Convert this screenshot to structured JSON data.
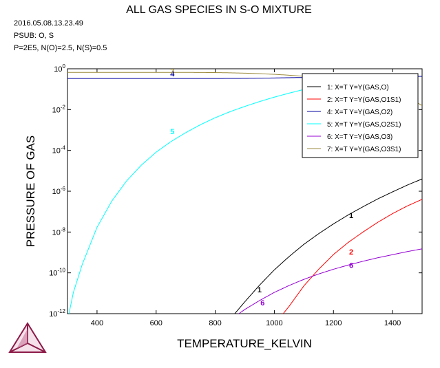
{
  "chart_data": {
    "type": "line",
    "title": "ALL GAS SPECIES IN S-O MIXTURE",
    "header_lines": [
      "2016.05.08.13.23.49",
      "PSUB: O, S",
      "P=2E5, N(O)=2.5, N(S)=0.5"
    ],
    "xlabel": "TEMPERATURE_KELVIN",
    "ylabel": "PRESSURE OF GAS",
    "xlim": [
      300,
      1500
    ],
    "ylim_log10": [
      -12,
      0
    ],
    "y_scale": "log",
    "x_ticks": [
      400,
      600,
      800,
      1000,
      1200,
      1400
    ],
    "y_ticks": [
      {
        "exp": 0,
        "label": "0"
      },
      {
        "exp": -2,
        "label": "-2"
      },
      {
        "exp": -4,
        "label": "-4"
      },
      {
        "exp": -6,
        "label": "-6"
      },
      {
        "exp": -8,
        "label": "-8"
      },
      {
        "exp": -10,
        "label": "-10"
      },
      {
        "exp": -12,
        "label": "-12"
      }
    ],
    "legend_position": "top-right",
    "series": [
      {
        "id": "1",
        "name": "1:  X=T  Y=Y(GAS,O)",
        "color": "#000000",
        "x": [
          866,
          900,
          950,
          1000,
          1050,
          1100,
          1150,
          1200,
          1250,
          1300,
          1350,
          1400,
          1450,
          1500
        ],
        "y": [
          1e-12,
          3.8e-12,
          2.5e-11,
          1.4e-10,
          6.3e-10,
          2.5e-09,
          8.3e-09,
          2.5e-08,
          6.9e-08,
          1.74e-07,
          4.2e-07,
          9.3e-07,
          2e-06,
          4e-06
        ],
        "label_at": [
          1260,
          6.5e-08
        ],
        "label_at2": [
          950,
          1.5e-11
        ]
      },
      {
        "id": "2",
        "name": "2:  X=T  Y=Y(GAS,O1S1)",
        "color": "#ff0000",
        "x": [
          1030,
          1050,
          1100,
          1150,
          1200,
          1250,
          1300,
          1350,
          1400,
          1450,
          1500
        ],
        "y": [
          1e-12,
          2.3e-12,
          2.3e-11,
          1.5e-10,
          7.9e-10,
          3.1e-09,
          1e-08,
          3e-08,
          8e-08,
          1.9e-07,
          4e-07
        ],
        "label_at": [
          1260,
          1.1e-09
        ]
      },
      {
        "id": "4",
        "name": "4:  X=T  Y=Y(GAS,O2)",
        "color": "#0000a0",
        "x": [
          300,
          500,
          700,
          800,
          900,
          1000,
          1100,
          1200,
          1300,
          1400,
          1500
        ],
        "y": [
          0.333,
          0.333,
          0.333,
          0.334,
          0.34,
          0.355,
          0.375,
          0.395,
          0.41,
          0.42,
          0.425
        ],
        "label_at": [
          1260,
          0.4
        ],
        "label_at2": [
          655,
          0.58
        ]
      },
      {
        "id": "5",
        "name": "5:  X=T  Y=Y(GAS,O2S1)",
        "color": "#00ffff",
        "x": [
          305,
          320,
          350,
          400,
          450,
          500,
          550,
          600,
          650,
          700,
          750,
          800,
          850,
          900,
          950,
          1000,
          1050,
          1100,
          1150,
          1200,
          1250
        ],
        "y": [
          1e-12,
          1.1e-11,
          2.6e-10,
          1.7e-08,
          3.3e-07,
          3.2e-06,
          1.9e-05,
          8.2e-05,
          0.00027,
          0.00074,
          0.00182,
          0.004,
          0.0079,
          0.0143,
          0.0247,
          0.0408,
          0.064,
          0.097,
          0.141,
          0.195,
          0.24
        ],
        "label_at": [
          655,
          0.00085
        ]
      },
      {
        "id": "6",
        "name": "6:  X=T  Y=Y(GAS,O3)",
        "color": "#9400d3",
        "x": [
          880,
          900,
          950,
          1000,
          1050,
          1100,
          1150,
          1200,
          1250,
          1300,
          1350,
          1400,
          1450,
          1500
        ],
        "y": [
          1e-12,
          1.6e-12,
          4.4e-12,
          1.1e-11,
          2.4e-11,
          4.8e-11,
          8.8e-11,
          1.5e-10,
          2.4e-10,
          3.7e-10,
          5.5e-10,
          7.8e-10,
          1.1e-09,
          1.5e-09
        ],
        "label_at": [
          960,
          3.5e-12
        ],
        "label_at2": [
          1260,
          2.4e-10
        ]
      },
      {
        "id": "7",
        "name": "7:  X=T  Y=Y(GAS,O3S1)",
        "color": "#9b8a3c",
        "x": [
          300,
          500,
          650,
          700,
          750,
          800,
          850,
          900,
          950,
          1000,
          1050,
          1100,
          1150,
          1200,
          1250,
          1300,
          1350,
          1400,
          1450,
          1500
        ],
        "y": [
          0.667,
          0.667,
          0.666,
          0.664,
          0.66,
          0.65,
          0.635,
          0.61,
          0.577,
          0.535,
          0.485,
          0.43,
          0.37,
          0.31,
          0.25,
          0.19,
          0.135,
          0.085,
          0.045,
          0.0155
        ],
        "label_at": [
          655,
          0.75
        ]
      }
    ]
  }
}
